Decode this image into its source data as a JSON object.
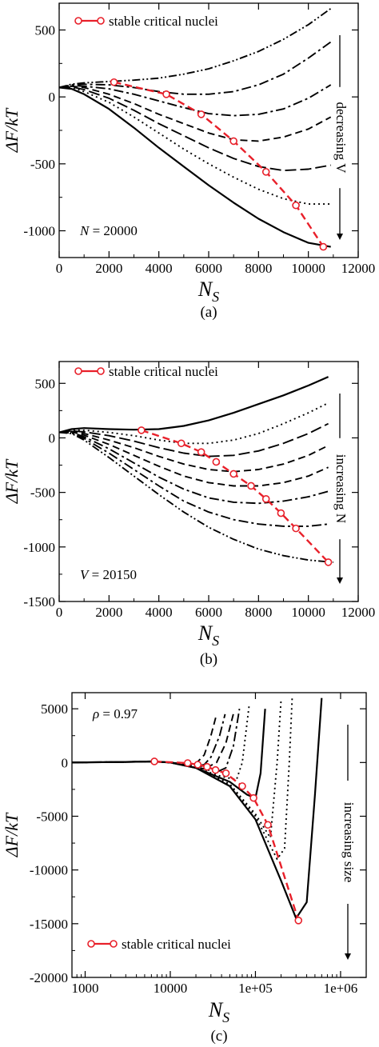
{
  "chart_data": [
    {
      "type": "line",
      "caption": "(a)",
      "xlabel": "N_S",
      "ylabel": "ΔF/kT",
      "xscale": "linear",
      "xlim": [
        0,
        12000
      ],
      "ylim": [
        -1200,
        700
      ],
      "xticks": [
        0,
        2000,
        4000,
        6000,
        8000,
        10000,
        12000
      ],
      "xtick_labels": [
        "0",
        "2000",
        "4000",
        "6000",
        "8000",
        "10000",
        "12000"
      ],
      "yticks": [
        -1000,
        -500,
        0,
        500
      ],
      "ytick_labels": [
        "-1000",
        "-500",
        "0",
        "500"
      ],
      "legend": {
        "label": "stable critical nuclei",
        "position": "top-left"
      },
      "annotation": {
        "text": "N = 20000",
        "position": "bottom-left"
      },
      "arrow_label": "decreasing V",
      "arrow_direction": "down",
      "series": [
        {
          "style": "dashdotdot",
          "x": [
            0,
            500,
            1000,
            2000,
            3000,
            4000,
            5000,
            6000,
            7000,
            8000,
            9000,
            10000,
            10900
          ],
          "y": [
            70,
            95,
            105,
            115,
            125,
            140,
            170,
            210,
            270,
            340,
            430,
            540,
            660
          ]
        },
        {
          "style": "dashdot",
          "x": [
            0,
            500,
            1000,
            2000,
            3000,
            4000,
            5000,
            6000,
            7000,
            8000,
            9000,
            10000,
            10900
          ],
          "y": [
            70,
            90,
            95,
            90,
            70,
            40,
            20,
            20,
            40,
            90,
            170,
            290,
            410
          ]
        },
        {
          "style": "dashdot",
          "x": [
            0,
            500,
            1000,
            2000,
            3000,
            4000,
            5000,
            6000,
            7000,
            8000,
            9000,
            10000,
            10900
          ],
          "y": [
            70,
            85,
            80,
            60,
            20,
            -30,
            -80,
            -125,
            -140,
            -130,
            -90,
            -10,
            90
          ]
        },
        {
          "style": "dashed",
          "x": [
            0,
            500,
            1000,
            2000,
            3000,
            4000,
            5000,
            6000,
            7000,
            8000,
            9000,
            10000,
            10900
          ],
          "y": [
            70,
            80,
            70,
            20,
            -50,
            -130,
            -200,
            -270,
            -320,
            -330,
            -300,
            -240,
            -150
          ]
        },
        {
          "style": "longdash",
          "x": [
            0,
            500,
            1000,
            2000,
            3000,
            4000,
            5000,
            6000,
            7000,
            8000,
            9000,
            10000,
            10900
          ],
          "y": [
            70,
            75,
            55,
            -10,
            -100,
            -200,
            -290,
            -380,
            -460,
            -520,
            -550,
            -540,
            -510
          ]
        },
        {
          "style": "dotted",
          "x": [
            0,
            500,
            1000,
            2000,
            3000,
            4000,
            5000,
            6000,
            7000,
            8000,
            9000,
            10000,
            10900
          ],
          "y": [
            70,
            70,
            40,
            -40,
            -150,
            -270,
            -390,
            -500,
            -600,
            -690,
            -760,
            -800,
            -800
          ]
        },
        {
          "style": "solid",
          "x": [
            0,
            500,
            1000,
            2000,
            3000,
            4000,
            5000,
            6000,
            7000,
            8000,
            9000,
            10000,
            10900
          ],
          "y": [
            70,
            60,
            20,
            -90,
            -230,
            -380,
            -520,
            -660,
            -790,
            -910,
            -1010,
            -1090,
            -1120
          ]
        },
        {
          "style": "red-circles",
          "x": [
            2200,
            4300,
            5700,
            7000,
            8300,
            9500,
            10600
          ],
          "y": [
            110,
            20,
            -130,
            -330,
            -560,
            -810,
            -1120
          ]
        }
      ]
    },
    {
      "type": "line",
      "caption": "(b)",
      "xlabel": "N_S",
      "ylabel": "ΔF/kT",
      "xscale": "linear",
      "xlim": [
        0,
        12000
      ],
      "ylim": [
        -1500,
        700
      ],
      "xticks": [
        0,
        2000,
        4000,
        6000,
        8000,
        10000,
        12000
      ],
      "xtick_labels": [
        "0",
        "2000",
        "4000",
        "6000",
        "8000",
        "10000",
        "12000"
      ],
      "yticks": [
        -1500,
        -1000,
        -500,
        0,
        500
      ],
      "ytick_labels": [
        "-1500",
        "-1000",
        "-500",
        "0",
        "500"
      ],
      "legend": {
        "label": "stable critical nuclei",
        "position": "top-left"
      },
      "annotation": {
        "text": "V = 20150",
        "position": "bottom-left"
      },
      "arrow_label": "increasing N",
      "arrow_direction": "down",
      "series": [
        {
          "style": "solid",
          "x": [
            0,
            500,
            1000,
            2000,
            3000,
            4000,
            5000,
            6000,
            7000,
            8000,
            9000,
            10000,
            10800
          ],
          "y": [
            50,
            80,
            90,
            80,
            75,
            80,
            110,
            160,
            230,
            310,
            390,
            480,
            560
          ]
        },
        {
          "style": "dotted",
          "x": [
            0,
            500,
            1000,
            2000,
            3000,
            4000,
            5000,
            6000,
            7000,
            8000,
            9000,
            10000,
            10800
          ],
          "y": [
            50,
            70,
            70,
            50,
            20,
            -20,
            -50,
            -50,
            -20,
            40,
            130,
            230,
            320
          ]
        },
        {
          "style": "longdash",
          "x": [
            0,
            500,
            1000,
            2000,
            3000,
            4000,
            5000,
            6000,
            7000,
            8000,
            9000,
            10000,
            10800
          ],
          "y": [
            50,
            65,
            55,
            20,
            -30,
            -90,
            -140,
            -170,
            -160,
            -120,
            -50,
            40,
            130
          ]
        },
        {
          "style": "dashed",
          "x": [
            0,
            500,
            1000,
            2000,
            3000,
            4000,
            5000,
            6000,
            7000,
            8000,
            9000,
            10000,
            10800
          ],
          "y": [
            50,
            60,
            40,
            -20,
            -90,
            -170,
            -240,
            -290,
            -310,
            -290,
            -240,
            -160,
            -70
          ]
        },
        {
          "style": "dashed",
          "x": [
            0,
            500,
            1000,
            2000,
            3000,
            4000,
            5000,
            6000,
            7000,
            8000,
            9000,
            10000,
            10800
          ],
          "y": [
            50,
            55,
            25,
            -60,
            -160,
            -260,
            -350,
            -410,
            -440,
            -440,
            -410,
            -350,
            -270
          ]
        },
        {
          "style": "dashdot",
          "x": [
            0,
            500,
            1000,
            2000,
            3000,
            4000,
            5000,
            6000,
            7000,
            8000,
            9000,
            10000,
            10800
          ],
          "y": [
            50,
            50,
            10,
            -100,
            -230,
            -360,
            -470,
            -550,
            -590,
            -600,
            -580,
            -540,
            -490
          ]
        },
        {
          "style": "dashdot",
          "x": [
            0,
            500,
            1000,
            2000,
            3000,
            4000,
            5000,
            6000,
            7000,
            8000,
            9000,
            10000,
            10800
          ],
          "y": [
            50,
            45,
            -5,
            -140,
            -290,
            -440,
            -580,
            -680,
            -750,
            -790,
            -810,
            -810,
            -790
          ]
        },
        {
          "style": "dashdotdot",
          "x": [
            0,
            500,
            1000,
            2000,
            3000,
            4000,
            5000,
            6000,
            7000,
            8000,
            9000,
            10000,
            11000
          ],
          "y": [
            50,
            40,
            -20,
            -180,
            -350,
            -520,
            -680,
            -820,
            -930,
            -1020,
            -1080,
            -1120,
            -1140
          ]
        },
        {
          "style": "red-circles",
          "x": [
            3300,
            4900,
            5700,
            6300,
            7000,
            7700,
            8300,
            8900,
            9500,
            10800
          ],
          "y": [
            70,
            -50,
            -130,
            -220,
            -330,
            -440,
            -560,
            -690,
            -830,
            -1140
          ]
        }
      ]
    },
    {
      "type": "line",
      "caption": "(c)",
      "xlabel": "N_S",
      "ylabel": "ΔF/kT",
      "xscale": "log",
      "xlim": [
        700,
        2000000
      ],
      "ylim": [
        -20000,
        6500
      ],
      "xticks": [
        1000,
        10000,
        100000,
        1000000
      ],
      "xtick_labels": [
        "1000",
        "10000",
        "1e+05",
        "1e+06"
      ],
      "yticks": [
        -20000,
        -15000,
        -10000,
        -5000,
        0,
        5000
      ],
      "ytick_labels": [
        "-20000",
        "-15000",
        "-10000",
        "-5000",
        "0",
        "5000"
      ],
      "legend": {
        "label": "stable critical nuclei",
        "position": "bottom-left"
      },
      "annotation": {
        "text": "ρ = 0.97",
        "position": "top-left"
      },
      "arrow_label": "increasing size",
      "arrow_direction": "down",
      "series": [
        {
          "style": "dashed",
          "x": [
            700,
            3000,
            6000,
            10000,
            15000,
            20000,
            25000,
            30000,
            35000
          ],
          "y": [
            0,
            50,
            100,
            0,
            -150,
            -100,
            700,
            2500,
            4500
          ]
        },
        {
          "style": "dashdot",
          "x": [
            700,
            3000,
            6000,
            10000,
            15000,
            20000,
            25000,
            30000,
            38000,
            44000
          ],
          "y": [
            0,
            50,
            100,
            0,
            -150,
            -300,
            -200,
            500,
            2500,
            4500
          ]
        },
        {
          "style": "dashed",
          "x": [
            700,
            3000,
            6000,
            10000,
            20000,
            28000,
            35000,
            45000,
            55000
          ],
          "y": [
            0,
            50,
            100,
            0,
            -300,
            -400,
            0,
            1800,
            4500
          ]
        },
        {
          "style": "dashdot",
          "x": [
            700,
            3000,
            6000,
            10000,
            20000,
            35000,
            45000,
            55000,
            65000
          ],
          "y": [
            0,
            50,
            100,
            0,
            -400,
            -900,
            -500,
            1500,
            5000
          ]
        },
        {
          "style": "dotted",
          "x": [
            700,
            3000,
            6000,
            10000,
            20000,
            40000,
            60000,
            70000,
            85000
          ],
          "y": [
            0,
            50,
            100,
            0,
            -500,
            -1300,
            -1600,
            0,
            5500
          ]
        },
        {
          "style": "solid",
          "x": [
            700,
            3000,
            6000,
            10000,
            20000,
            50000,
            80000,
            100000,
            115000,
            130000
          ],
          "y": [
            0,
            50,
            100,
            0,
            -500,
            -1800,
            -3000,
            -3300,
            -1000,
            5000
          ]
        },
        {
          "style": "dotted",
          "x": [
            700,
            3000,
            6000,
            10000,
            20000,
            50000,
            100000,
            150000,
            180000,
            200000
          ],
          "y": [
            0,
            50,
            100,
            0,
            -500,
            -2000,
            -4800,
            -7000,
            0,
            5800
          ]
        },
        {
          "style": "dotted",
          "x": [
            700,
            3000,
            6000,
            10000,
            20000,
            50000,
            100000,
            180000,
            220000,
            250000,
            270000
          ],
          "y": [
            0,
            50,
            100,
            0,
            -500,
            -2100,
            -5000,
            -9000,
            -8000,
            0,
            6000
          ]
        },
        {
          "style": "solid",
          "x": [
            700,
            3000,
            6000,
            10000,
            20000,
            50000,
            100000,
            200000,
            300000,
            400000,
            500000,
            600000
          ],
          "y": [
            0,
            50,
            100,
            0,
            -500,
            -2200,
            -5300,
            -11000,
            -14500,
            -13000,
            -3000,
            6000
          ]
        },
        {
          "style": "red-circles",
          "x": [
            6500,
            16000,
            21000,
            27000,
            34000,
            45000,
            70000,
            95000,
            140000,
            320000
          ],
          "y": [
            100,
            -50,
            -200,
            -400,
            -700,
            -1000,
            -2200,
            -3300,
            -5800,
            -14700
          ]
        }
      ]
    }
  ]
}
